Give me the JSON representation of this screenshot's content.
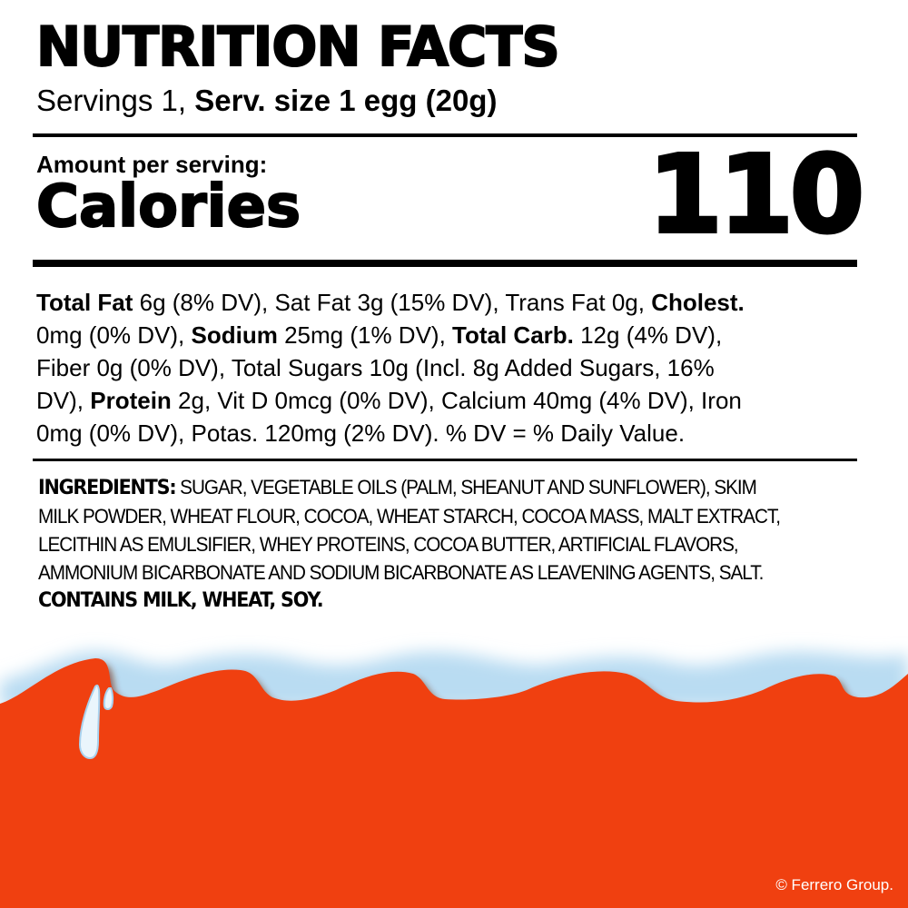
{
  "title": "NUTRITION FACTS",
  "servings": {
    "prefix": "Servings 1, ",
    "size": "Serv. size 1 egg (20g)"
  },
  "amount_label": "Amount per serving:",
  "calories_label": "Calories",
  "calories_value": "110",
  "nutrients_lines": [
    [
      {
        "t": "Total Fat",
        "b": true
      },
      {
        "t": " 6g (8% DV), Sat Fat 3g (15% DV), Trans Fat 0g, "
      },
      {
        "t": "Cholest.",
        "b": true
      }
    ],
    [
      {
        "t": "0mg (0% DV), "
      },
      {
        "t": "Sodium",
        "b": true
      },
      {
        "t": " 25mg (1% DV), "
      },
      {
        "t": "Total Carb.",
        "b": true
      },
      {
        "t": " 12g (4% DV),"
      }
    ],
    [
      {
        "t": "Fiber 0g (0% DV), Total Sugars 10g (Incl. 8g Added Sugars, 16%"
      }
    ],
    [
      {
        "t": "DV), "
      },
      {
        "t": "Protein",
        "b": true
      },
      {
        "t": " 2g, Vit D 0mcg (0% DV), Calcium 40mg (4% DV), Iron"
      }
    ],
    [
      {
        "t": "0mg (0% DV), Potas. 120mg (2% DV). % DV = % Daily Value."
      }
    ]
  ],
  "ingredients": {
    "label": "INGREDIENTS:",
    "lines": [
      " SUGAR, VEGETABLE OILS (PALM, SHEANUT AND SUNFLOWER), SKIM",
      "MILK POWDER, WHEAT FLOUR, COCOA, WHEAT STARCH, COCOA MASS, MALT EXTRACT,",
      "LECITHIN AS EMULSIFIER, WHEY PROTEINS, COCOA BUTTER, ARTIFICIAL FLAVORS,",
      "AMMONIUM BICARBONATE AND SODIUM BICARBONATE AS LEAVENING AGENTS, SALT."
    ],
    "allergens": "CONTAINS MILK, WHEAT, SOY."
  },
  "copyright": "© Ferrero Group.",
  "colors": {
    "brand_orange": "#f04010",
    "milk_blue": "#b9dcf2"
  }
}
